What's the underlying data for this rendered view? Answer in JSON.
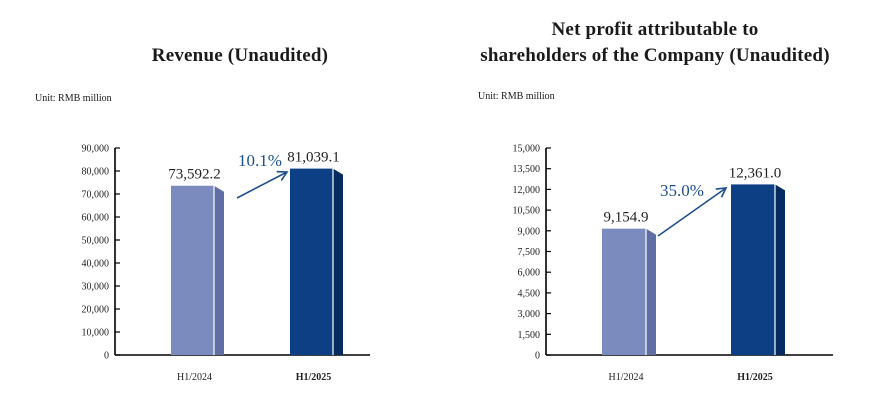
{
  "chart_data": [
    {
      "type": "bar",
      "title": "Revenue (Unaudited)",
      "unit": "Unit: RMB million",
      "categories": [
        "H1/2024",
        "H1/2025"
      ],
      "values": [
        73592.2,
        81039.1
      ],
      "value_labels": [
        "73,592.2",
        "81,039.1"
      ],
      "growth_label": "10.1%",
      "ylim": [
        0,
        90000
      ],
      "yticks": [
        0,
        10000,
        20000,
        30000,
        40000,
        50000,
        60000,
        70000,
        80000,
        90000
      ],
      "ytick_labels": [
        "0",
        "10,000",
        "20,000",
        "30,000",
        "40,000",
        "50,000",
        "60,000",
        "70,000",
        "80,000",
        "90,000"
      ],
      "bar_colors": [
        "#7b8bbd",
        "#0d3f85"
      ]
    },
    {
      "type": "bar",
      "title": "Net profit attributable to shareholders of the Company (Unaudited)",
      "title_lines": [
        "Net profit attributable to",
        "shareholders of the Company (Unaudited)"
      ],
      "unit": "Unit: RMB million",
      "categories": [
        "H1/2024",
        "H1/2025"
      ],
      "values": [
        9154.9,
        12361.0
      ],
      "value_labels": [
        "9,154.9",
        "12,361.0"
      ],
      "growth_label": "35.0%",
      "ylim": [
        0,
        15000
      ],
      "yticks": [
        0,
        1500,
        3000,
        4500,
        6000,
        7500,
        9000,
        10500,
        12000,
        13500,
        15000
      ],
      "ytick_labels": [
        "0",
        "1,500",
        "3,000",
        "4,500",
        "6,000",
        "7,500",
        "9,000",
        "10,500",
        "12,000",
        "13,500",
        "15,000"
      ],
      "bar_colors": [
        "#7b8bbd",
        "#0d3f85"
      ]
    }
  ]
}
